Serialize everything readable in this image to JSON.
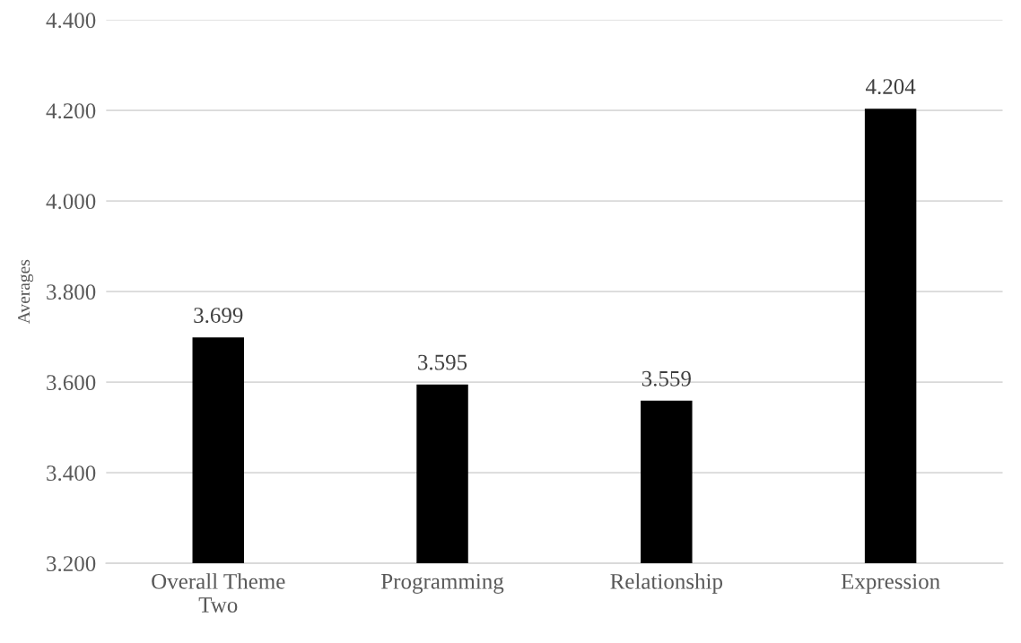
{
  "chart_data": {
    "type": "bar",
    "ylabel": "Averages",
    "categories": [
      "Overall Theme\nTwo",
      "Programming",
      "Relationship",
      "Expression"
    ],
    "values": [
      3.699,
      3.595,
      3.559,
      4.204
    ],
    "color": "#000000",
    "ylim": [
      3.2,
      4.4
    ],
    "yticks": [
      {
        "value": 3.2,
        "label": "3.200"
      },
      {
        "value": 3.4,
        "label": "3.400"
      },
      {
        "value": 3.6,
        "label": "3.600"
      },
      {
        "value": 3.8,
        "label": "3.800"
      },
      {
        "value": 4.0,
        "label": "4.000"
      },
      {
        "value": 4.2,
        "label": "4.200"
      },
      {
        "value": 4.4,
        "label": "4.400"
      }
    ],
    "grid": "y",
    "data_labels": true
  }
}
